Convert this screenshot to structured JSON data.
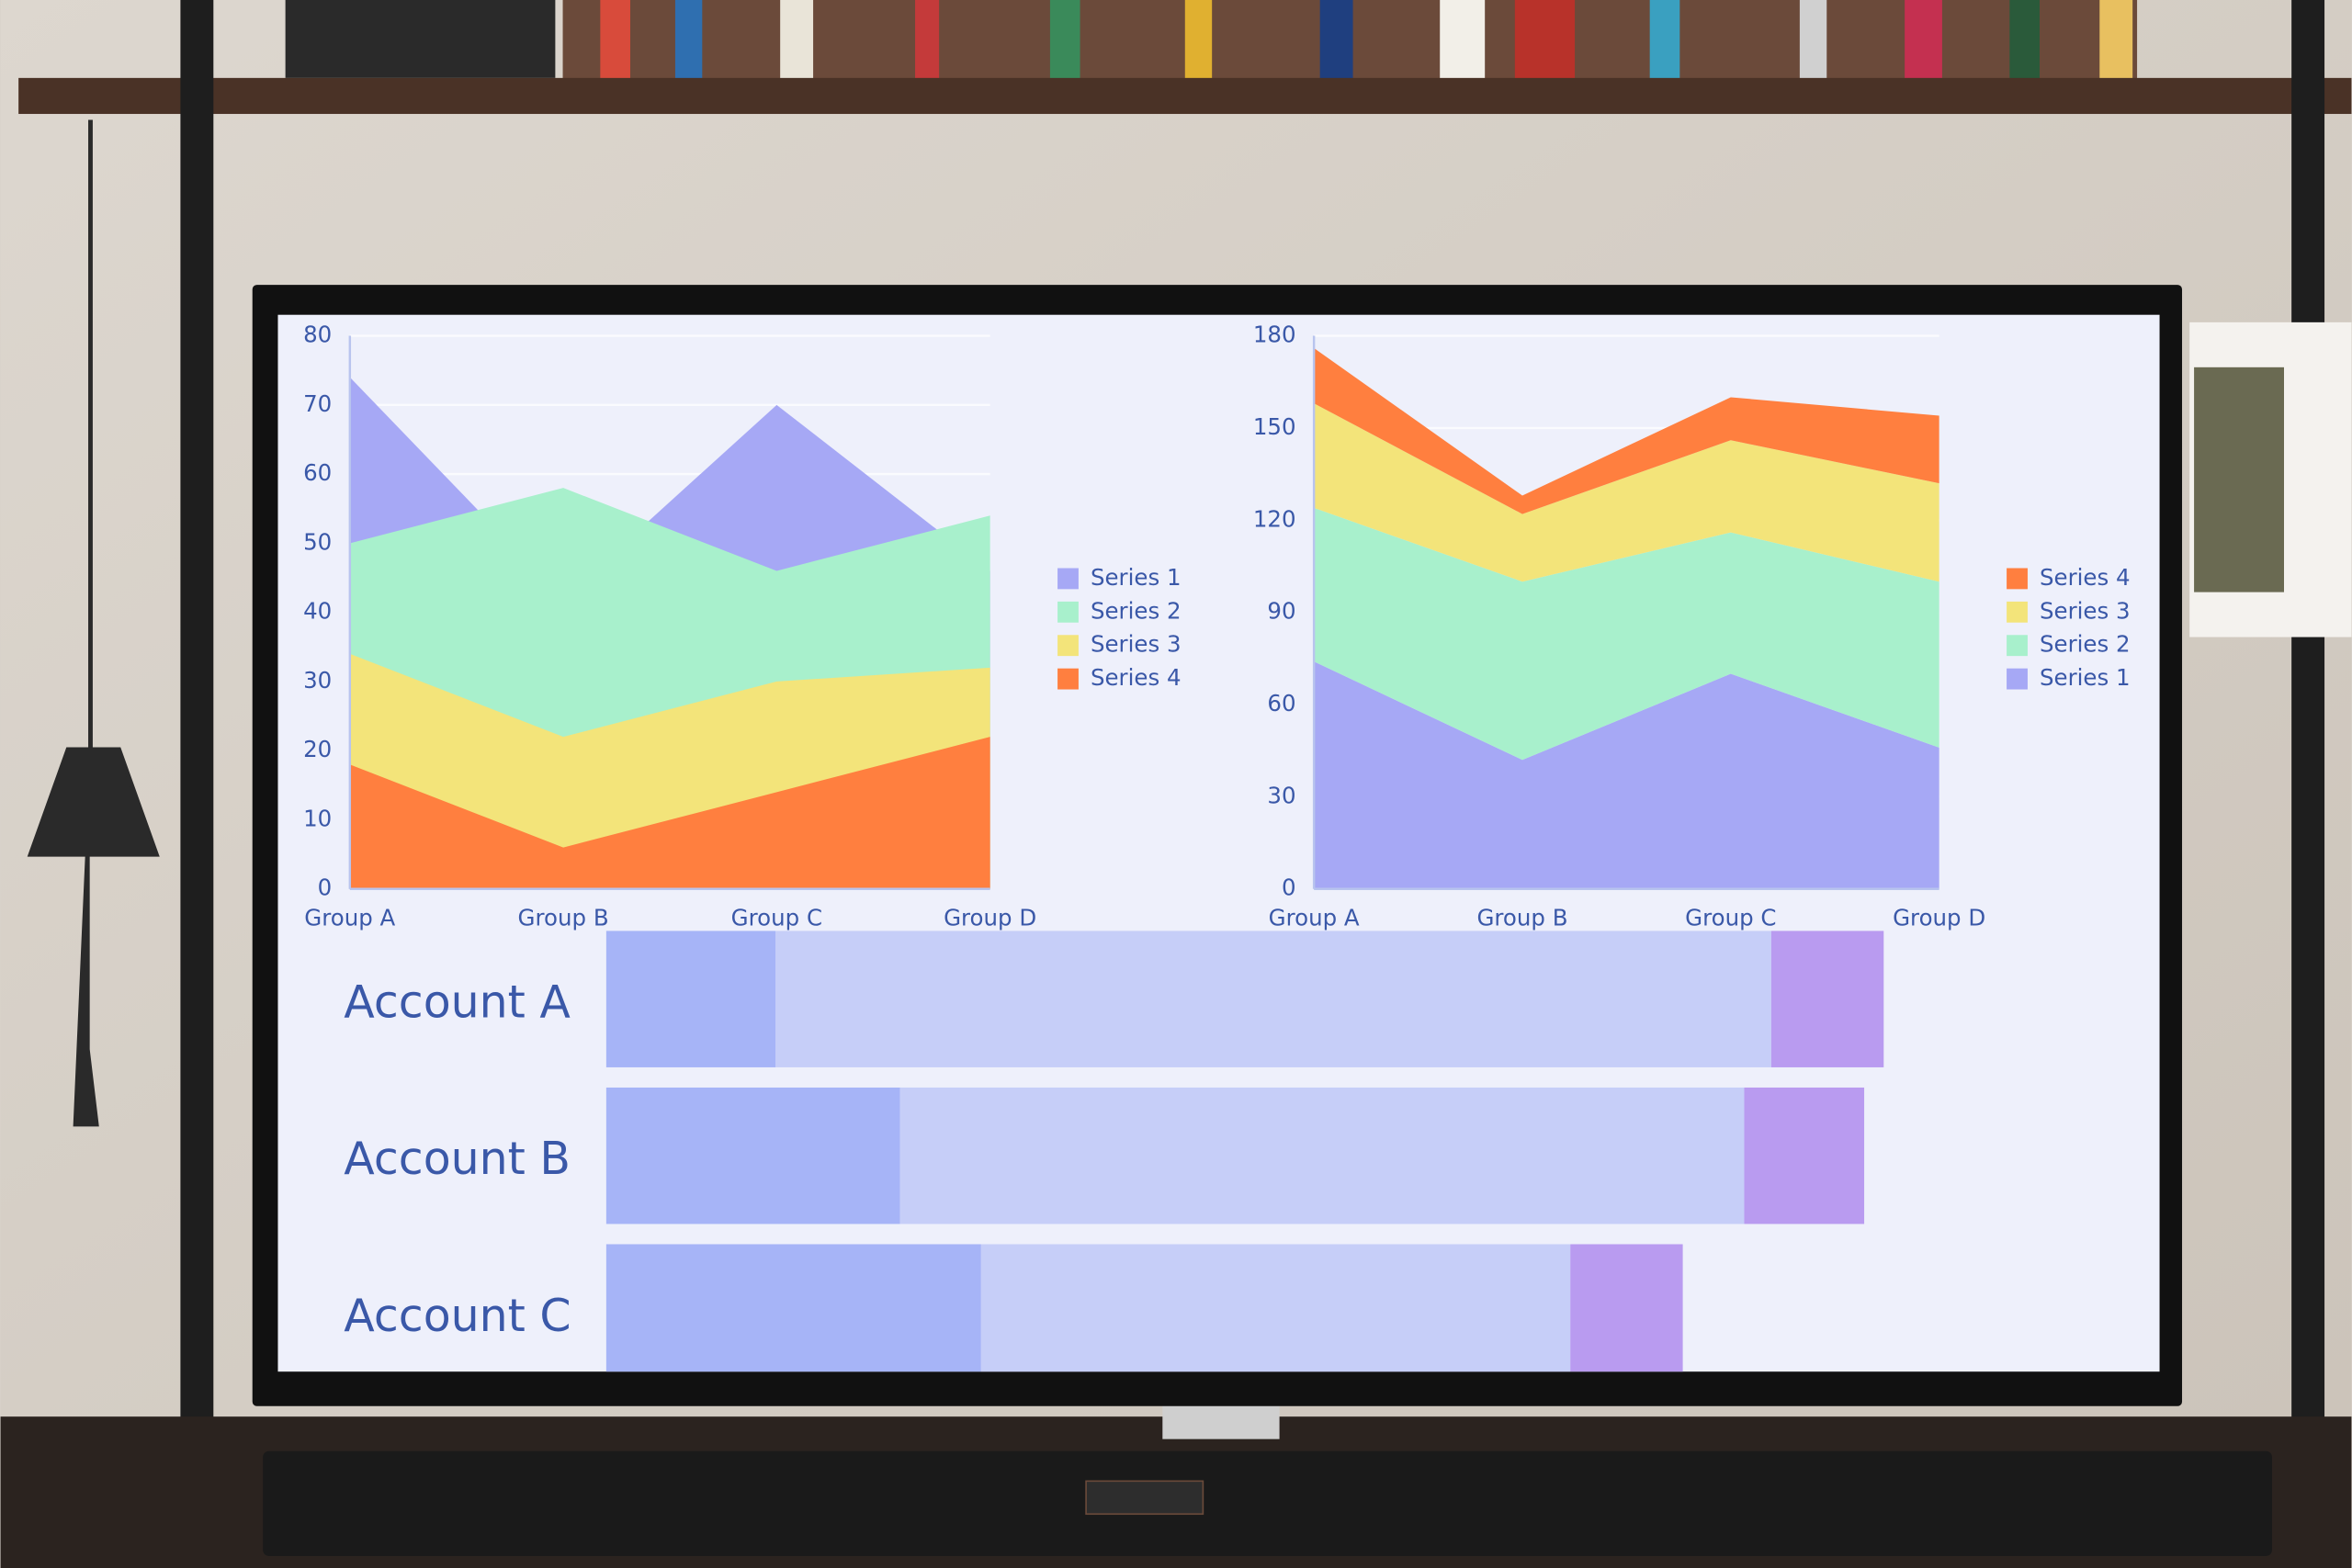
{
  "chart_data": [
    {
      "type": "area",
      "stacked": false,
      "grid": true,
      "legend_reversed": false,
      "categories": [
        "Group A",
        "Group B",
        "Group C",
        "Group D"
      ],
      "ylim": [
        0,
        80
      ],
      "yticks": [
        0,
        10,
        20,
        30,
        40,
        50,
        60,
        70,
        80
      ],
      "series": [
        {
          "name": "Series 1",
          "color": "#a6a8f5",
          "values": [
            74,
            42,
            70,
            46
          ]
        },
        {
          "name": "Series 2",
          "color": "#a8f0cc",
          "values": [
            50,
            58,
            46,
            54
          ]
        },
        {
          "name": "Series 3",
          "color": "#f3e47a",
          "values": [
            34,
            22,
            30,
            32
          ]
        },
        {
          "name": "Series 4",
          "color": "#ff7f3f",
          "values": [
            18,
            6,
            14,
            22
          ]
        }
      ]
    },
    {
      "type": "area",
      "stacked": true,
      "grid": true,
      "legend_reversed": true,
      "categories": [
        "Group A",
        "Group B",
        "Group C",
        "Group D"
      ],
      "ylim": [
        0,
        180
      ],
      "yticks": [
        0,
        30,
        60,
        90,
        120,
        150,
        180
      ],
      "series": [
        {
          "name": "Series 1",
          "color": "#a6a8f5",
          "values": [
            74,
            42,
            70,
            46
          ]
        },
        {
          "name": "Series 2",
          "color": "#a8f0cc",
          "values": [
            50,
            58,
            46,
            54
          ]
        },
        {
          "name": "Series 3",
          "color": "#f3e47a",
          "values": [
            34,
            22,
            30,
            32
          ]
        },
        {
          "name": "Series 4",
          "color": "#ff7f3f",
          "values": [
            18,
            6,
            14,
            22
          ]
        }
      ]
    },
    {
      "type": "barh",
      "stacked": true,
      "categories": [
        "Account A",
        "Account B",
        "Account C"
      ],
      "series": [
        {
          "color": "#a6b4f7",
          "values": [
            113,
            196,
            250
          ]
        },
        {
          "color": "#c6cef8",
          "values": [
            664,
            563,
            393
          ]
        },
        {
          "color": "#b99bf0",
          "values": [
            75,
            80,
            75
          ]
        }
      ]
    }
  ]
}
